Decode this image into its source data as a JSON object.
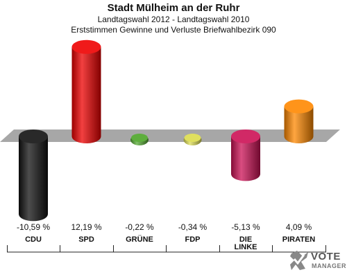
{
  "header": {
    "title": "Stadt Mülheim an der Ruhr",
    "subtitle1": "Landtagswahl 2012 - Landtagswahl 2010",
    "subtitle2": "Erststimmen Gewinne und Verluste Briefwahlbezirk 090"
  },
  "logo": {
    "line1": "VOTE",
    "line2": "MANAGER",
    "icon": "check-cross-logo-icon"
  },
  "chart_data": {
    "type": "bar",
    "categories": [
      "CDU",
      "SPD",
      "GRÜNE",
      "FDP",
      "DIE LINKE",
      "PIRATEN"
    ],
    "series": [
      {
        "values": [
          -10.59,
          12.19,
          -0.22,
          -0.34,
          -5.13,
          4.09
        ],
        "labels": [
          "-10,59 %",
          "12,19 %",
          "-0,22 %",
          "-0,34 %",
          "-5,13 %",
          "4,09 %"
        ],
        "colors": [
          "#111111",
          "#ee0000",
          "#55aa33",
          "#dddd55",
          "#cc1155",
          "#ff8800"
        ]
      }
    ],
    "ylim": [
      -12,
      12.6
    ],
    "grid": false,
    "legend": "none"
  }
}
